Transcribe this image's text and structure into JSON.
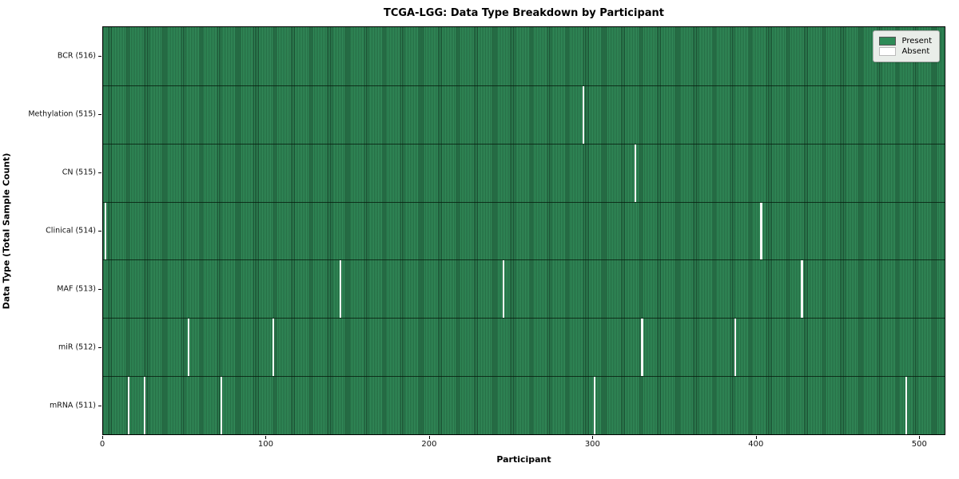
{
  "chart_data": {
    "type": "heatmap",
    "title": "TCGA-LGG: Data Type Breakdown by Participant",
    "xlabel": "Participant",
    "ylabel": "Data Type (Total Sample Count)",
    "x_ticks": [
      0,
      100,
      200,
      300,
      400,
      500
    ],
    "n_participants": 516,
    "present_color": "#2e8b57",
    "absent_color": "#ffffff",
    "legend": [
      {
        "label": "Present",
        "color": "#2e8b57"
      },
      {
        "label": "Absent",
        "color": "#ffffff"
      }
    ],
    "rows": [
      {
        "label": "BCR (516)",
        "count": 516,
        "absent_participants": []
      },
      {
        "label": "Methylation (515)",
        "count": 515,
        "absent_participants": [
          294
        ]
      },
      {
        "label": "CN (515)",
        "count": 515,
        "absent_participants": [
          326
        ]
      },
      {
        "label": "Clinical (514)",
        "count": 514,
        "absent_participants": [
          1,
          403
        ]
      },
      {
        "label": "MAF (513)",
        "count": 513,
        "absent_participants": [
          145,
          245,
          428
        ]
      },
      {
        "label": "miR (512)",
        "count": 512,
        "absent_participants": [
          52,
          104,
          330,
          387
        ]
      },
      {
        "label": "mRNA (511)",
        "count": 511,
        "absent_participants": [
          15,
          25,
          72,
          301,
          492
        ]
      }
    ]
  }
}
